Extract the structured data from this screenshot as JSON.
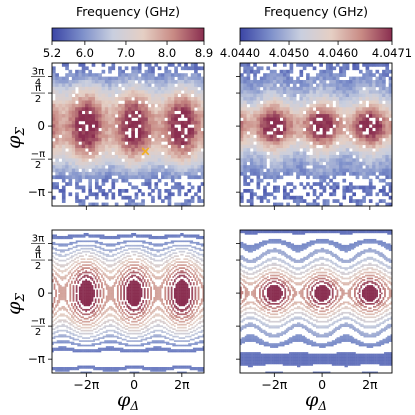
{
  "chart_data": [
    {
      "type": "heatmap",
      "panel": "top-left",
      "colorbar": {
        "label": "Frequency (GHz)",
        "range": [
          5.2,
          8.9
        ],
        "ticks": [
          "5.2",
          "6.0",
          "7.0",
          "8.0",
          "8.9"
        ],
        "tick_values": [
          5.2,
          6.0,
          7.0,
          8.0,
          8.9
        ],
        "colormap": [
          "#3b45a5",
          "#7d8fca",
          "#c9cfdf",
          "#e5cfc4",
          "#c88a84",
          "#8a2e50"
        ]
      },
      "y_axis_label": "φ_Σ",
      "y_ticks": [
        "3π/4",
        "π/2",
        "0",
        "−π/2",
        "−π"
      ],
      "y_tick_values": [
        2.356,
        1.571,
        0,
        -1.571,
        -3.142
      ],
      "ylim": [
        -3.8,
        3.0
      ],
      "xlim": [
        -10.8,
        9.2
      ],
      "x_tick_values": [
        -6.283,
        0,
        6.283
      ],
      "x_ticks_labeled": false,
      "sampled": true,
      "marker": {
        "symbol": "×",
        "color": "#f2b01e",
        "x": 1.5,
        "y": -1.2
      }
    },
    {
      "type": "heatmap",
      "panel": "top-right",
      "colorbar": {
        "label": "Frequency (GHz)",
        "range": [
          4.044,
          4.0471
        ],
        "ticks": [
          "4.0440",
          "4.0450",
          "4.0460",
          "4.0471"
        ],
        "tick_values": [
          4.044,
          4.045,
          4.046,
          4.0471
        ],
        "colormap": [
          "#3b45a5",
          "#7d8fca",
          "#c9cfdf",
          "#e5cfc4",
          "#c88a84",
          "#8a2e50"
        ]
      },
      "y_ticks_labeled": false,
      "ylim": [
        -3.8,
        3.0
      ],
      "xlim": [
        -10.8,
        9.2
      ],
      "x_ticks_labeled": false,
      "sampled": true
    },
    {
      "type": "contour",
      "panel": "bottom-left",
      "x_axis_label": "φ_Δ",
      "y_axis_label": "φ_Σ",
      "x_ticks": [
        "−2π",
        "0",
        "2π"
      ],
      "x_tick_values": [
        -6.283,
        0,
        6.283
      ],
      "y_ticks": [
        "3π/4",
        "π/2",
        "0",
        "−π/2",
        "−π"
      ],
      "y_tick_values": [
        2.356,
        1.571,
        0,
        -1.571,
        -3.142
      ],
      "xlim": [
        -10.8,
        9.2
      ],
      "ylim": [
        -3.8,
        3.0
      ],
      "range": [
        5.2,
        8.9
      ],
      "levels": 14
    },
    {
      "type": "contour",
      "panel": "bottom-right",
      "x_axis_label": "φ_Δ",
      "x_ticks": [
        "−2π",
        "0",
        "2π"
      ],
      "x_tick_values": [
        -6.283,
        0,
        6.283
      ],
      "y_ticks_labeled": false,
      "xlim": [
        -10.8,
        9.2
      ],
      "ylim": [
        -3.8,
        3.0
      ],
      "range": [
        4.044,
        4.0471
      ],
      "levels": 11
    }
  ]
}
